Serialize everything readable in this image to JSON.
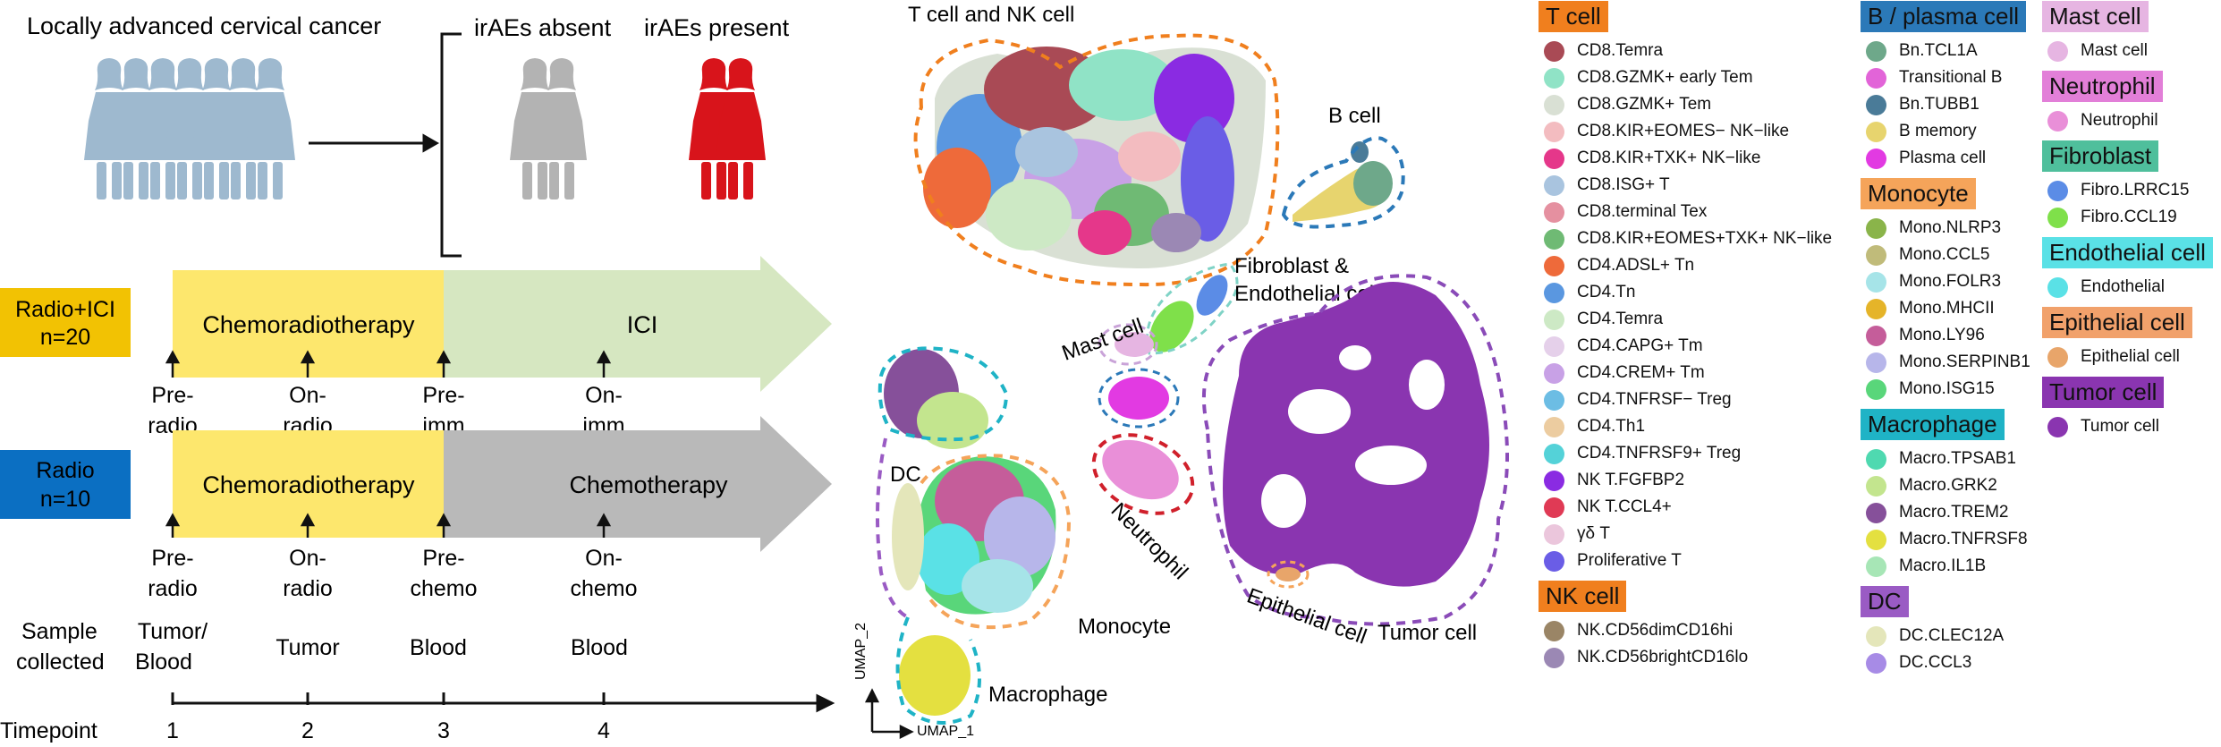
{
  "left": {
    "title": "Locally advanced cervical cancer",
    "absent_label": "irAEs absent",
    "present_label": "irAEs present",
    "colors": {
      "cohort": "#9eb9cf",
      "absent": "#b3b3b3",
      "present": "#d8141b"
    },
    "arms": [
      {
        "name": "Radio+ICI",
        "n": "n=20",
        "badge_color": "#f2c203",
        "phase1": "Chemoradiotherapy",
        "phase2": "ICI",
        "phase1_color": "#fde76d",
        "phase2_color": "#d6e7c1",
        "points": [
          [
            "Pre-",
            "radio"
          ],
          [
            "On-",
            "radio"
          ],
          [
            "Pre-",
            "imm"
          ],
          [
            "On-",
            "imm"
          ]
        ]
      },
      {
        "name": "Radio",
        "n": "n=10",
        "badge_color": "#0b6fc2",
        "phase1": "Chemoradiotherapy",
        "phase2": "Chemotherapy",
        "phase1_color": "#fde76d",
        "phase2_color": "#b9b9b9",
        "points": [
          [
            "Pre-",
            "radio"
          ],
          [
            "On-",
            "radio"
          ],
          [
            "Pre-",
            "chemo"
          ],
          [
            "On-",
            "chemo"
          ]
        ]
      }
    ],
    "sample_label": [
      "Sample",
      "collected"
    ],
    "samples": [
      [
        "Tumor/",
        "Blood"
      ],
      [
        "Tumor"
      ],
      [
        "Blood"
      ],
      [
        "Blood"
      ]
    ],
    "timepoint_label": "Timepoint",
    "timepoints": [
      "1",
      "2",
      "3",
      "4"
    ]
  },
  "umap": {
    "xlabel": "UMAP_1",
    "ylabel": "UMAP_2",
    "regions": [
      {
        "label": "T cell and NK cell",
        "outline": "#f07f1e"
      },
      {
        "label": "B cell",
        "outline": "#2b79b8"
      },
      {
        "label": [
          "Fibroblast &",
          "Endothelial cell"
        ],
        "outline": "#7fd3c6"
      },
      {
        "label": "Mast cell",
        "outline": "#c9a3d8"
      },
      {
        "label": "Neutrophil",
        "outline": "#d0202b"
      },
      {
        "label": "DC",
        "outline": "#9a5bc4"
      },
      {
        "label": "Monocyte",
        "outline": "#f5a45a"
      },
      {
        "label": "Macrophage",
        "outline": "#1fb3c6"
      },
      {
        "label": "Epithelial cell",
        "outline": "#f5a45a"
      },
      {
        "label": "Tumor cell",
        "outline": "#8a4bb8"
      }
    ]
  },
  "legend": {
    "columns": [
      [
        {
          "name": "T cell",
          "color": "#f07f1e",
          "items": [
            {
              "label": "CD8.Temra",
              "color": "#a94a55"
            },
            {
              "label": "CD8.GZMK+ early Tem",
              "color": "#90e3c6"
            },
            {
              "label": "CD8.GZMK+ Tem",
              "color": "#d9e0d4"
            },
            {
              "label": "CD8.KIR+EOMES− NK−like",
              "color": "#f3bcc0"
            },
            {
              "label": "CD8.KIR+TXK+ NK−like",
              "color": "#e5378a"
            },
            {
              "label": "CD8.ISG+ T",
              "color": "#a9c4df"
            },
            {
              "label": "CD8.terminal Tex",
              "color": "#e590a0"
            },
            {
              "label": "CD8.KIR+EOMES+TXK+ NK−like",
              "color": "#6fba74"
            },
            {
              "label": "CD4.ADSL+ Tn",
              "color": "#ee6a3a"
            },
            {
              "label": "CD4.Tn",
              "color": "#5a97e0"
            },
            {
              "label": "CD4.Temra",
              "color": "#cde9c5"
            },
            {
              "label": "CD4.CAPG+ Tm",
              "color": "#e5d0ea"
            },
            {
              "label": "CD4.CREM+ Tm",
              "color": "#c8a1e6"
            },
            {
              "label": "CD4.TNFRSF− Treg",
              "color": "#6cbde4"
            },
            {
              "label": "CD4.Th1",
              "color": "#eccca0"
            },
            {
              "label": "CD4.TNFRSF9+ Treg",
              "color": "#54d2d8"
            },
            {
              "label": "NK T.FGFBP2",
              "color": "#8a2be2"
            },
            {
              "label": "NK T.CCL4+",
              "color": "#e03a55"
            },
            {
              "label": "γδ T",
              "color": "#ebc6dc"
            },
            {
              "label": "Proliferative T",
              "color": "#6a5de6"
            }
          ]
        },
        {
          "name": "NK cell",
          "color": "#f07f1e",
          "items": [
            {
              "label": "NK.CD56dimCD16hi",
              "color": "#9a8566"
            },
            {
              "label": "NK.CD56brightCD16lo",
              "color": "#9b88b4"
            }
          ]
        }
      ],
      [
        {
          "name": "B / plasma cell",
          "color": "#2b79b8",
          "items": [
            {
              "label": "Bn.TCL1A",
              "color": "#6ea88a"
            },
            {
              "label": "Transitional B",
              "color": "#e264d8"
            },
            {
              "label": "Bn.TUBB1",
              "color": "#4a7b98"
            },
            {
              "label": "B memory",
              "color": "#e7d46e"
            },
            {
              "label": "Plasma cell",
              "color": "#e23ae2"
            }
          ]
        },
        {
          "name": "Monocyte",
          "color": "#f5a45a",
          "items": [
            {
              "label": "Mono.NLRP3",
              "color": "#8ab44a"
            },
            {
              "label": "Mono.CCL5",
              "color": "#c0bb7a"
            },
            {
              "label": "Mono.FOLR3",
              "color": "#a6e4e8"
            },
            {
              "label": "Mono.MHCII",
              "color": "#e5b429"
            },
            {
              "label": "Mono.LY96",
              "color": "#c55d9a"
            },
            {
              "label": "Mono.SERPINB1",
              "color": "#b7b6ea"
            },
            {
              "label": "Mono.ISG15",
              "color": "#59d67a"
            }
          ]
        },
        {
          "name": "Macrophage",
          "color": "#1fb3c6",
          "items": [
            {
              "label": "Macro.TPSAB1",
              "color": "#4fd9b0"
            },
            {
              "label": "Macro.GRK2",
              "color": "#c3e58e"
            },
            {
              "label": "Macro.TREM2",
              "color": "#86509a"
            },
            {
              "label": "Macro.TNFRSF8",
              "color": "#e4e040"
            },
            {
              "label": "Macro.IL1B",
              "color": "#a7e6b6"
            }
          ]
        },
        {
          "name": "DC",
          "color": "#9a5bc4",
          "items": [
            {
              "label": "DC.CLEC12A",
              "color": "#e4e6ba"
            },
            {
              "label": "DC.CCL3",
              "color": "#a78be6"
            }
          ]
        }
      ],
      [
        {
          "name": "Mast cell",
          "color": "#e6b5e2",
          "items": [
            {
              "label": "Mast cell",
              "color": "#e6b5e2"
            }
          ]
        },
        {
          "name": "Neutrophil",
          "color": "#e27fd8",
          "items": [
            {
              "label": "Neutrophil",
              "color": "#e98fd8"
            }
          ]
        },
        {
          "name": "Fibroblast",
          "color": "#4fbf9c",
          "items": [
            {
              "label": "Fibro.LRRC15",
              "color": "#5b8ce6"
            },
            {
              "label": "Fibro.CCL19",
              "color": "#7fe04a"
            }
          ]
        },
        {
          "name": "Endothelial cell",
          "color": "#5ae1e6",
          "items": [
            {
              "label": "Endothelial",
              "color": "#5ae1e6"
            }
          ]
        },
        {
          "name": "Epithelial cell",
          "color": "#f1a16b",
          "items": [
            {
              "label": "Epithelial cell",
              "color": "#e8a56a"
            }
          ]
        },
        {
          "name": "Tumor cell",
          "color": "#8a35b0",
          "items": [
            {
              "label": "Tumor cell",
              "color": "#8a35b0"
            }
          ]
        }
      ]
    ]
  }
}
